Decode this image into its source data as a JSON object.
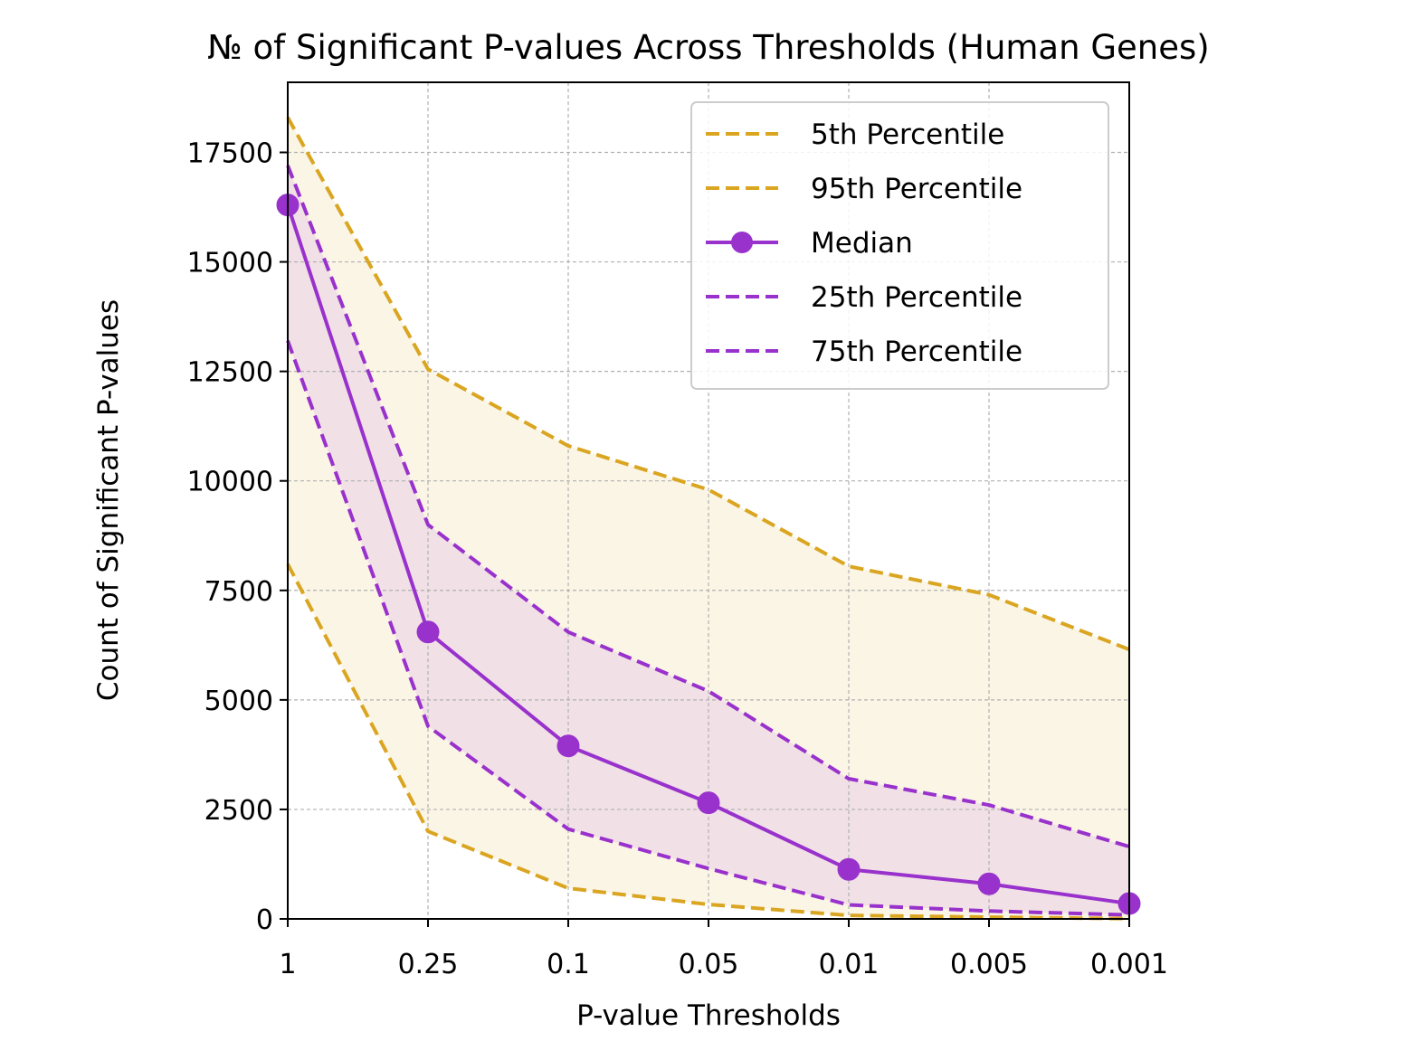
{
  "chart_data": {
    "type": "line",
    "title": "№ of Significant P-values Across Thresholds (Human Genes)",
    "xlabel": "P-value Thresholds",
    "ylabel": "Count of Significant P-values",
    "categories": [
      "1",
      "0.25",
      "0.1",
      "0.05",
      "0.01",
      "0.005",
      "0.001"
    ],
    "yticks": [
      "0",
      "2500",
      "5000",
      "7500",
      "10000",
      "12500",
      "15000",
      "17500"
    ],
    "ylim": [
      0,
      19100
    ],
    "grid": true,
    "legend_position": "top-right",
    "series": [
      {
        "name": "5th Percentile",
        "style": "dashed",
        "color": "#DAA520",
        "values": [
          8100,
          2000,
          700,
          330,
          80,
          40,
          5
        ]
      },
      {
        "name": "95th Percentile",
        "style": "dashed",
        "color": "#DAA520",
        "values": [
          18300,
          12550,
          10800,
          9800,
          8050,
          7400,
          6150
        ]
      },
      {
        "name": "Median",
        "style": "solid-marker",
        "color": "#9932CC",
        "values": [
          16300,
          6550,
          3950,
          2650,
          1130,
          800,
          350
        ]
      },
      {
        "name": "25th Percentile",
        "style": "dashed",
        "color": "#9932CC",
        "values": [
          13200,
          4400,
          2050,
          1150,
          320,
          180,
          90
        ]
      },
      {
        "name": "75th Percentile",
        "style": "dashed",
        "color": "#9932CC",
        "values": [
          17200,
          9000,
          6550,
          5200,
          3200,
          2600,
          1650
        ]
      }
    ],
    "bands": [
      {
        "between": [
          "5th Percentile",
          "95th Percentile"
        ],
        "color": "#FBF5E6"
      },
      {
        "between": [
          "25th Percentile",
          "75th Percentile"
        ],
        "color": "#F1E1E6"
      }
    ]
  }
}
